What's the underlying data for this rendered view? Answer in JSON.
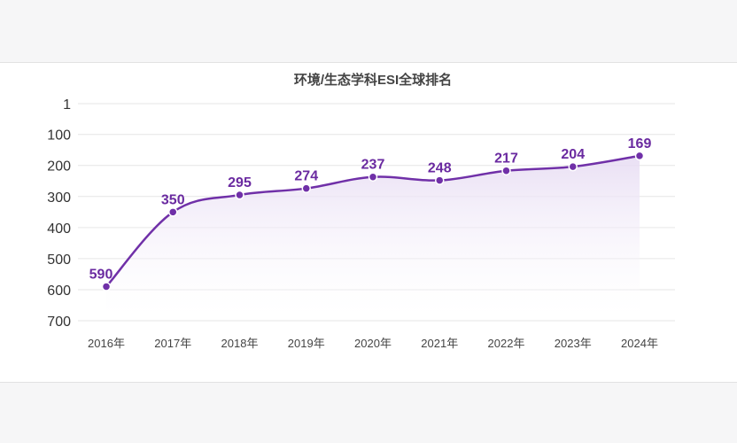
{
  "chart_data": {
    "type": "line",
    "title": "环境/生态学科ESI全球排名",
    "categories": [
      "2016年",
      "2017年",
      "2018年",
      "2019年",
      "2020年",
      "2021年",
      "2022年",
      "2023年",
      "2024年"
    ],
    "values": [
      590,
      350,
      295,
      274,
      237,
      248,
      217,
      204,
      169
    ],
    "yticks": [
      "1",
      "100",
      "200",
      "300",
      "400",
      "500",
      "600",
      "700"
    ],
    "ylim": [
      1,
      700
    ],
    "y_inverted": true,
    "grid": true,
    "area_fill": true,
    "data_labels": true,
    "colors": {
      "line": "#7030a8",
      "label": "#6a2aa0",
      "fill": "#ede4f6"
    }
  }
}
